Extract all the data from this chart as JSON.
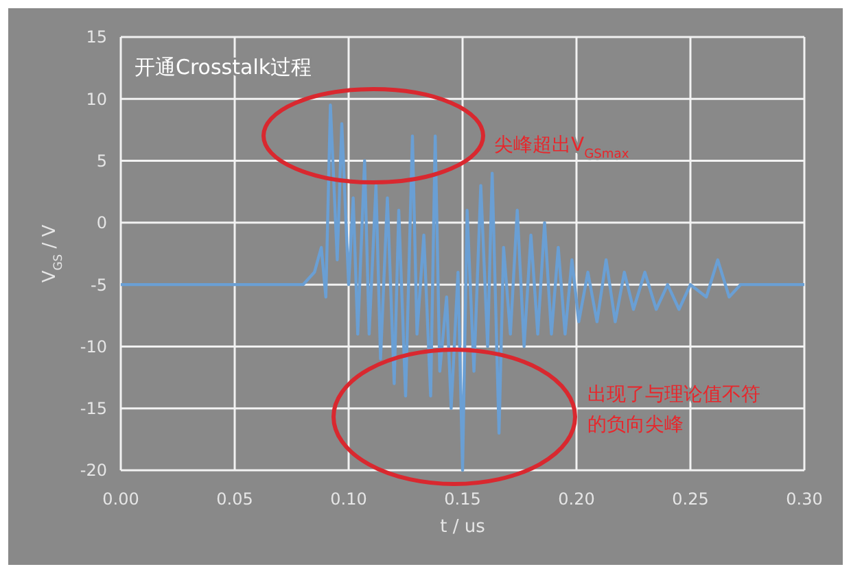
{
  "chart_data": {
    "type": "line",
    "title": "开通Crosstalk过程",
    "xlabel": "t / us",
    "ylabel": "V$_{GS}$ / V",
    "annotations": [
      "尖峰超出V$_{GSmax}$",
      "出现了与理论值不符的负向尖峰"
    ],
    "xlim": [
      0,
      0.3
    ],
    "xticks": [
      {
        "value": 0,
        "label": "0.00"
      },
      {
        "value": 0.05,
        "label": "0.05"
      },
      {
        "value": 0.1,
        "label": "0.10"
      },
      {
        "value": 0.15,
        "label": "0.15"
      },
      {
        "value": 0.2,
        "label": "0.20"
      },
      {
        "value": 0.25,
        "label": "0.25"
      },
      {
        "value": 0.3,
        "label": "0.30"
      }
    ],
    "ylim": [
      -20,
      15
    ],
    "yticks": [
      -20,
      -15,
      -10,
      -5,
      0,
      5,
      10,
      15
    ],
    "grid": true,
    "marker": "none",
    "line_style": "solid",
    "series": [
      {
        "color": "#6a9fd4",
        "x": [
          0,
          0.08,
          0.085,
          0.088,
          0.09,
          0.092,
          0.095,
          0.097,
          0.1,
          0.102,
          0.104,
          0.107,
          0.109,
          0.112,
          0.114,
          0.117,
          0.12,
          0.122,
          0.125,
          0.128,
          0.13,
          0.133,
          0.136,
          0.138,
          0.14,
          0.143,
          0.145,
          0.148,
          0.15,
          0.152,
          0.155,
          0.158,
          0.161,
          0.163,
          0.166,
          0.168,
          0.171,
          0.174,
          0.177,
          0.18,
          0.183,
          0.186,
          0.189,
          0.192,
          0.195,
          0.198,
          0.201,
          0.205,
          0.209,
          0.213,
          0.217,
          0.221,
          0.225,
          0.23,
          0.235,
          0.24,
          0.245,
          0.25,
          0.257,
          0.262,
          0.267,
          0.272,
          0.3
        ],
        "values": [
          -5,
          -5,
          -4,
          -2,
          -6,
          9.5,
          -3,
          8,
          -5,
          2,
          -9,
          5,
          -9,
          3,
          -11,
          2,
          -13,
          1,
          -14,
          7,
          -9,
          -1,
          -14,
          7,
          -12,
          -6,
          -15,
          -4,
          -20,
          1,
          -12,
          3,
          -10,
          4,
          -17,
          -2,
          -9,
          1,
          -10,
          -1,
          -9,
          0,
          -9,
          -2,
          -9,
          -3,
          -8,
          -4,
          -8,
          -3,
          -8,
          -4,
          -7,
          -4,
          -7,
          -5,
          -7,
          -5,
          -6,
          -3,
          -6,
          -5,
          -5
        ]
      }
    ]
  }
}
